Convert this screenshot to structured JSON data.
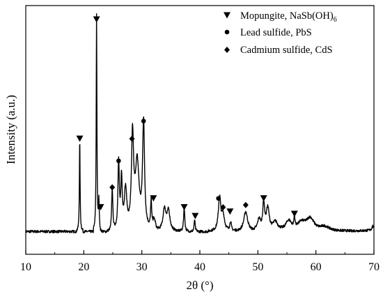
{
  "chart_data": {
    "type": "line",
    "xlabel": "2θ (°)",
    "ylabel": "Intensity (a.u.)",
    "xlim": [
      10,
      70
    ],
    "xticks": [
      10,
      20,
      30,
      40,
      50,
      60,
      70
    ],
    "xtick_labels": [
      "10",
      "20",
      "30",
      "40",
      "50",
      "60",
      "70"
    ],
    "y_ticks_shown": false,
    "grid": false,
    "legend_position": "top-right",
    "legend": [
      {
        "marker": "triangle-down",
        "label": "Mopungite, NaSb(OH)",
        "subscript": "6"
      },
      {
        "marker": "circle",
        "label": "Lead sulfide, PbS"
      },
      {
        "marker": "diamond",
        "label": "Cadmium sulfide, CdS"
      }
    ],
    "baseline_intensity": 0.04,
    "series": [
      {
        "peaks": [
          {
            "x": 19.3,
            "y": 0.42,
            "w": 0.07
          },
          {
            "x": 22.2,
            "y": 0.985,
            "w": 0.07
          },
          {
            "x": 22.6,
            "y": 0.13,
            "w": 0.08
          },
          {
            "x": 24.9,
            "y": 0.2,
            "w": 0.12
          },
          {
            "x": 26.0,
            "y": 0.31,
            "w": 0.14
          },
          {
            "x": 26.5,
            "y": 0.23,
            "w": 0.15
          },
          {
            "x": 27.2,
            "y": 0.18,
            "w": 0.25
          },
          {
            "x": 28.4,
            "y": 0.42,
            "w": 0.22
          },
          {
            "x": 29.2,
            "y": 0.3,
            "w": 0.4
          },
          {
            "x": 30.3,
            "y": 0.49,
            "w": 0.2
          },
          {
            "x": 31.6,
            "y": 0.12,
            "w": 0.1
          },
          {
            "x": 32.1,
            "y": 0.05,
            "w": 0.3
          },
          {
            "x": 33.9,
            "y": 0.1,
            "w": 0.3
          },
          {
            "x": 34.6,
            "y": 0.09,
            "w": 0.3
          },
          {
            "x": 37.3,
            "y": 0.11,
            "w": 0.12
          },
          {
            "x": 39.1,
            "y": 0.055,
            "w": 0.1
          },
          {
            "x": 43.4,
            "y": 0.15,
            "w": 0.25
          },
          {
            "x": 44.0,
            "y": 0.07,
            "w": 0.3
          },
          {
            "x": 45.3,
            "y": 0.04,
            "w": 0.15
          },
          {
            "x": 47.9,
            "y": 0.09,
            "w": 0.4
          },
          {
            "x": 50.2,
            "y": 0.05,
            "w": 0.3
          },
          {
            "x": 51.0,
            "y": 0.12,
            "w": 0.2
          },
          {
            "x": 51.7,
            "y": 0.1,
            "w": 0.3
          },
          {
            "x": 53.0,
            "y": 0.04,
            "w": 0.5
          },
          {
            "x": 55.3,
            "y": 0.045,
            "w": 0.6
          },
          {
            "x": 56.3,
            "y": 0.05,
            "w": 0.1
          },
          {
            "x": 57.5,
            "y": 0.035,
            "w": 0.8
          },
          {
            "x": 59.0,
            "y": 0.055,
            "w": 0.8
          },
          {
            "x": 61.5,
            "y": 0.02,
            "w": 1.0
          },
          {
            "x": 69.8,
            "y": 0.02,
            "w": 0.2
          }
        ]
      }
    ],
    "markers": [
      {
        "x": 19.3,
        "y": 0.46,
        "type": "triangle-down"
      },
      {
        "x": 22.2,
        "y": 1.0,
        "type": "triangle-down"
      },
      {
        "x": 22.9,
        "y": 0.15,
        "type": "triangle-down"
      },
      {
        "x": 24.9,
        "y": 0.24,
        "type": "diamond"
      },
      {
        "x": 26.0,
        "y": 0.36,
        "type": "circle"
      },
      {
        "x": 28.3,
        "y": 0.46,
        "type": "diamond"
      },
      {
        "x": 30.3,
        "y": 0.54,
        "type": "circle"
      },
      {
        "x": 32.0,
        "y": 0.19,
        "type": "triangle-down"
      },
      {
        "x": 37.3,
        "y": 0.15,
        "type": "triangle-down"
      },
      {
        "x": 39.2,
        "y": 0.11,
        "type": "triangle-down"
      },
      {
        "x": 43.2,
        "y": 0.19,
        "type": "circle"
      },
      {
        "x": 44.0,
        "y": 0.15,
        "type": "diamond"
      },
      {
        "x": 45.2,
        "y": 0.13,
        "type": "triangle-down"
      },
      {
        "x": 47.9,
        "y": 0.16,
        "type": "diamond"
      },
      {
        "x": 51.0,
        "y": 0.19,
        "type": "triangle-down"
      },
      {
        "x": 56.3,
        "y": 0.12,
        "type": "triangle-down"
      }
    ]
  }
}
